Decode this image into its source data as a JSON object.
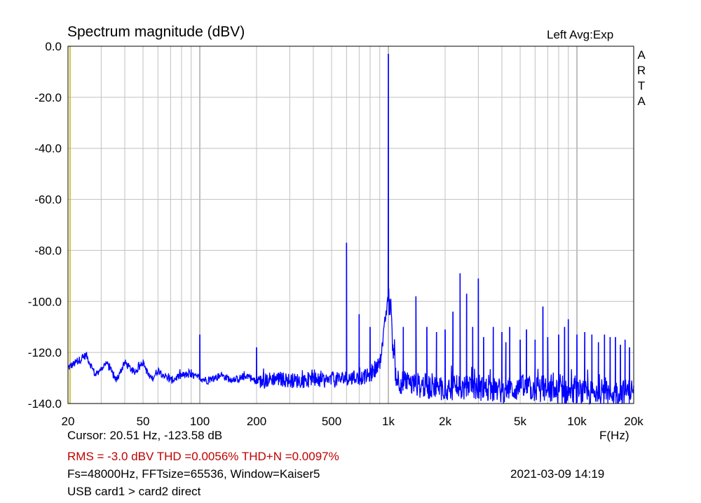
{
  "header": {
    "title": "Spectrum magnitude (dBV)",
    "channel_label": "Left  Avg:Exp"
  },
  "brand": {
    "letters": [
      "A",
      "R",
      "T",
      "A"
    ]
  },
  "footer": {
    "cursor": "Cursor: 20.51 Hz, -123.58 dB",
    "stats": "RMS =   -3.0 dBV  THD =0.0056%  THD+N =0.0097%",
    "fft": "Fs=48000Hz, FFTsize=65536, Window=Kaiser5",
    "datetime": "2021-03-09  14:19",
    "device": "USB card1 > card2 direct",
    "x_unit": "F(Hz)"
  },
  "colors": {
    "trace": "#0000ff",
    "stats": "#c00000",
    "grid": "#c0c0c0",
    "cursor": "#c8b400"
  },
  "chart_data": {
    "type": "line",
    "x_scale": "log",
    "xlim": [
      20,
      20000
    ],
    "ylim": [
      -140,
      0
    ],
    "y_ticks": [
      0,
      -20,
      -40,
      -60,
      -80,
      -100,
      -120,
      -140
    ],
    "y_tick_labels": [
      "0.0",
      "-20.0",
      "-40.0",
      "-60.0",
      "-80.0",
      "-100.0",
      "-120.0",
      "-140.0"
    ],
    "x_ticks": [
      20,
      50,
      100,
      200,
      500,
      1000,
      2000,
      5000,
      10000,
      20000
    ],
    "x_tick_labels": [
      "20",
      "50",
      "100",
      "200",
      "500",
      "1k",
      "2k",
      "5k",
      "10k",
      "20k"
    ],
    "grid": true,
    "cursor_x": 20.51,
    "series": [
      {
        "noise_floor": [
          [
            20,
            -126
          ],
          [
            22,
            -124
          ],
          [
            25,
            -121
          ],
          [
            28,
            -129
          ],
          [
            32,
            -124
          ],
          [
            36,
            -131
          ],
          [
            40,
            -124
          ],
          [
            45,
            -128
          ],
          [
            50,
            -124
          ],
          [
            55,
            -131
          ],
          [
            60,
            -127
          ],
          [
            70,
            -131
          ],
          [
            80,
            -129
          ],
          [
            90,
            -129
          ],
          [
            100,
            -130
          ],
          [
            110,
            -131
          ],
          [
            130,
            -129
          ],
          [
            150,
            -131
          ],
          [
            180,
            -129
          ],
          [
            200,
            -132
          ],
          [
            250,
            -130
          ],
          [
            300,
            -131
          ],
          [
            400,
            -131
          ],
          [
            500,
            -131
          ],
          [
            600,
            -130
          ],
          [
            700,
            -130
          ],
          [
            800,
            -129
          ],
          [
            850,
            -127
          ],
          [
            900,
            -124
          ],
          [
            950,
            -112
          ],
          [
            980,
            -102
          ],
          [
            1000,
            -98
          ],
          [
            1020,
            -103
          ],
          [
            1060,
            -118
          ],
          [
            1100,
            -130
          ],
          [
            1200,
            -132
          ],
          [
            1500,
            -133
          ],
          [
            2000,
            -134
          ],
          [
            3000,
            -134
          ],
          [
            4000,
            -135
          ],
          [
            5000,
            -134
          ],
          [
            7000,
            -135
          ],
          [
            10000,
            -136
          ],
          [
            15000,
            -136
          ],
          [
            20000,
            -135
          ]
        ],
        "peaks": [
          [
            100,
            -113
          ],
          [
            200,
            -118
          ],
          [
            600,
            -77
          ],
          [
            700,
            -105
          ],
          [
            800,
            -110
          ],
          [
            1000,
            -3
          ],
          [
            1200,
            -110
          ],
          [
            1400,
            -98
          ],
          [
            1600,
            -110
          ],
          [
            1800,
            -112
          ],
          [
            2000,
            -111
          ],
          [
            2200,
            -104
          ],
          [
            2400,
            -89
          ],
          [
            2600,
            -97
          ],
          [
            2800,
            -110
          ],
          [
            3000,
            -91
          ],
          [
            3200,
            -114
          ],
          [
            3600,
            -110
          ],
          [
            4000,
            -112
          ],
          [
            4200,
            -116
          ],
          [
            4400,
            -110
          ],
          [
            5000,
            -115
          ],
          [
            5400,
            -111
          ],
          [
            6000,
            -115
          ],
          [
            6600,
            -102
          ],
          [
            7000,
            -114
          ],
          [
            8000,
            -113
          ],
          [
            8600,
            -110
          ],
          [
            9000,
            -107
          ],
          [
            10000,
            -113
          ],
          [
            11000,
            -112
          ],
          [
            12000,
            -113
          ],
          [
            13000,
            -116
          ],
          [
            14000,
            -113
          ],
          [
            15000,
            -114
          ],
          [
            16000,
            -114
          ],
          [
            17000,
            -117
          ],
          [
            18000,
            -115
          ],
          [
            19000,
            -118
          ]
        ]
      }
    ]
  }
}
